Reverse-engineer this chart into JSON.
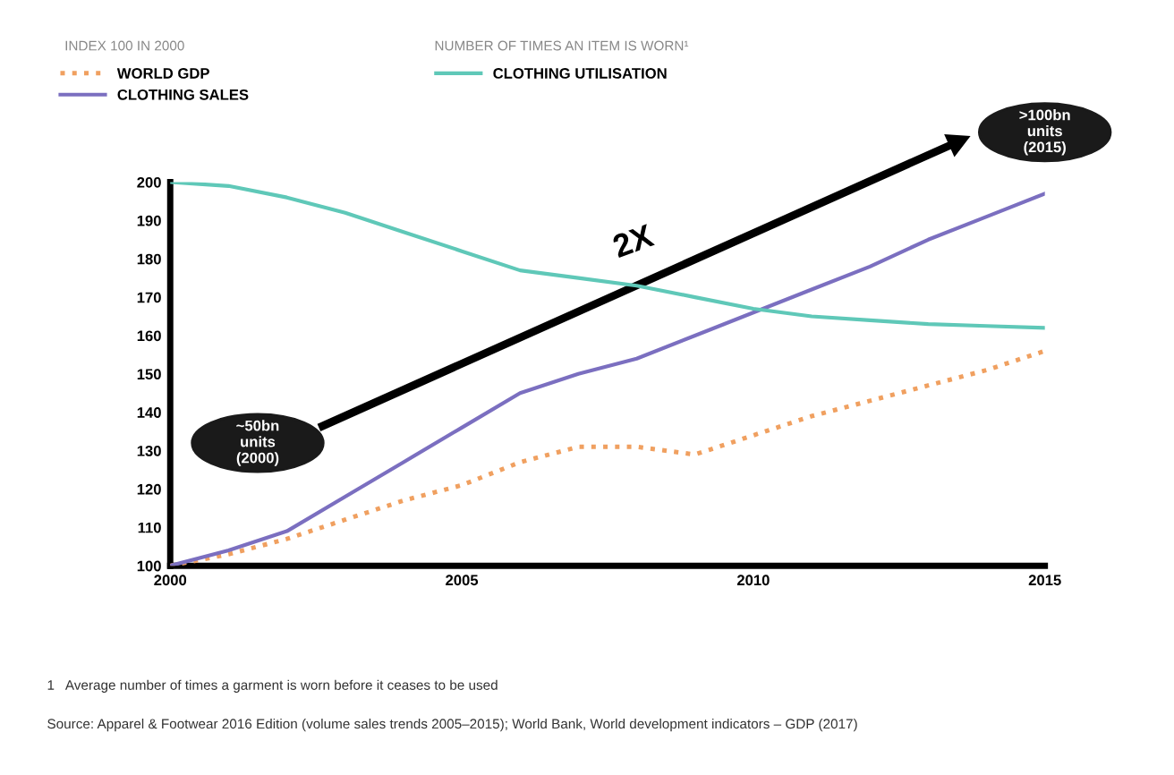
{
  "chart_data": {
    "type": "line",
    "x": [
      2000,
      2001,
      2002,
      2003,
      2004,
      2005,
      2006,
      2007,
      2008,
      2009,
      2010,
      2011,
      2012,
      2013,
      2014,
      2015
    ],
    "series": [
      {
        "name": "WORLD GDP",
        "color": "#f0a060",
        "line_style": "dotted",
        "values": [
          100,
          103,
          107,
          112,
          117,
          121,
          127,
          131,
          131,
          129,
          134,
          139,
          143,
          147,
          151,
          156
        ]
      },
      {
        "name": "CLOTHING SALES",
        "color": "#7b6fc0",
        "line_style": "solid",
        "values": [
          100,
          104,
          109,
          118,
          127,
          136,
          145,
          150,
          154,
          160,
          166,
          172,
          178,
          185,
          191,
          197
        ]
      },
      {
        "name": "CLOTHING UTILISATION",
        "color": "#5fc8b8",
        "line_style": "solid",
        "values": [
          200,
          199,
          196,
          192,
          187,
          182,
          177,
          175,
          173,
          170,
          167,
          165,
          164,
          163,
          162.5,
          162
        ]
      }
    ],
    "xlim": [
      2000,
      2015
    ],
    "xticks": [
      2000,
      2005,
      2010,
      2015
    ],
    "ylim": [
      100,
      200
    ],
    "yticks": [
      100,
      110,
      120,
      130,
      140,
      150,
      160,
      170,
      180,
      190,
      200
    ],
    "grid": false,
    "legend": "top left",
    "marker": "none",
    "annotations": [
      "INDEX 100 IN 2000",
      "NUMBER OF TIMES AN ITEM IS WORN¹",
      "~50bn\nunits\n(2000)",
      ">100bn\nunits\n(2015)",
      "2X",
      "1   Average number of times a garment is worn before it ceases to be used",
      "Source: Apparel & Footwear 2016 Edition (volume sales trends 2005–2015); World Bank, World development indicators – GDP (2017)"
    ]
  }
}
